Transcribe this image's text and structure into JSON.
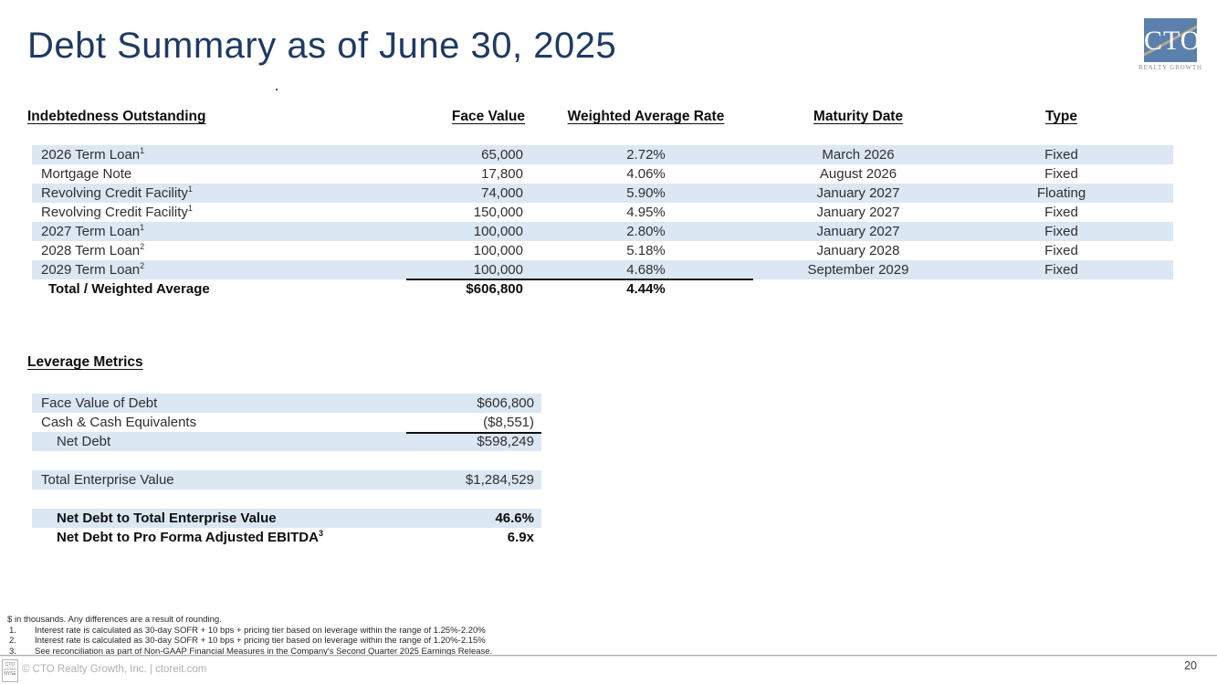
{
  "slide": {
    "title": "Debt Summary as of June 30, 2025",
    "page_number": "20"
  },
  "logo": {
    "text": "CTO",
    "subtext": "REALTY GROWTH"
  },
  "debt_table": {
    "headers": [
      "Indebtedness Outstanding",
      "Face Value",
      "Weighted Average Rate",
      "Maturity Date",
      "Type"
    ],
    "rows": [
      {
        "name": "2026 Term Loan",
        "footnote": "1",
        "face_value": "65,000",
        "rate": "2.72%",
        "maturity": "March 2026",
        "type": "Fixed"
      },
      {
        "name": "Mortgage Note",
        "footnote": "",
        "face_value": "17,800",
        "rate": "4.06%",
        "maturity": "August 2026",
        "type": "Fixed"
      },
      {
        "name": "Revolving Credit Facility",
        "footnote": "1",
        "face_value": "74,000",
        "rate": "5.90%",
        "maturity": "January 2027",
        "type": "Floating"
      },
      {
        "name": "Revolving Credit Facility",
        "footnote": "1",
        "face_value": "150,000",
        "rate": "4.95%",
        "maturity": "January 2027",
        "type": "Fixed"
      },
      {
        "name": "2027 Term Loan",
        "footnote": "1",
        "face_value": "100,000",
        "rate": "2.80%",
        "maturity": "January 2027",
        "type": "Fixed"
      },
      {
        "name": "2028 Term Loan",
        "footnote": "2",
        "face_value": "100,000",
        "rate": "5.18%",
        "maturity": "January 2028",
        "type": "Fixed"
      },
      {
        "name": "2029 Term Loan",
        "footnote": "2",
        "face_value": "100,000",
        "rate": "4.68%",
        "maturity": "September 2029",
        "type": "Fixed"
      }
    ],
    "total": {
      "label": "Total / Weighted Average",
      "face_value": "$606,800",
      "rate": "4.44%"
    }
  },
  "leverage_metrics": {
    "header": "Leverage Metrics",
    "face_value_of_debt": {
      "label": "Face Value of Debt",
      "value": "$606,800"
    },
    "cash": {
      "label": "Cash & Cash Equivalents",
      "value": "($8,551)"
    },
    "net_debt": {
      "label": "Net Debt",
      "value": "$598,249"
    },
    "tev": {
      "label": "Total Enterprise Value",
      "value": "$1,284,529"
    },
    "nd_to_tev": {
      "label": "Net Debt to Total Enterprise Value",
      "value": "46.6%"
    },
    "nd_to_ebitda": {
      "label": "Net Debt to Pro Forma Adjusted EBITDA",
      "footnote": "3",
      "value": "6.9x"
    }
  },
  "footnotes": {
    "preamble": "$ in thousands. Any differences are a result of rounding.",
    "items": [
      {
        "num": "1.",
        "text": "Interest rate is calculated as 30-day SOFR + 10 bps + pricing tier based on leverage within the range of 1.25%-2.20%"
      },
      {
        "num": "2.",
        "text": "Interest rate is calculated as 30-day SOFR + 10 bps + pricing tier based on leverage within the range of 1.20%-2.15%"
      },
      {
        "num": "3.",
        "text": "See reconciliation as part of Non-GAAP Financial Measures in the Company's Second Quarter 2025 Earnings Release."
      }
    ]
  },
  "footer": {
    "nyse_badge": {
      "line1": "CTO",
      "line2": "LISTED",
      "line3": "NYSE"
    },
    "copyright": "© CTO Realty Growth, Inc. | ctoreit.com",
    "page_number": "20"
  },
  "colors": {
    "title_navy": "#1f3a63",
    "row_stripe_blue": "#dbe7f3",
    "logo_blue": "#5b80ab",
    "logo_diagonal_tan": "#b3a89a",
    "footer_gray": "#b0b0b0"
  }
}
